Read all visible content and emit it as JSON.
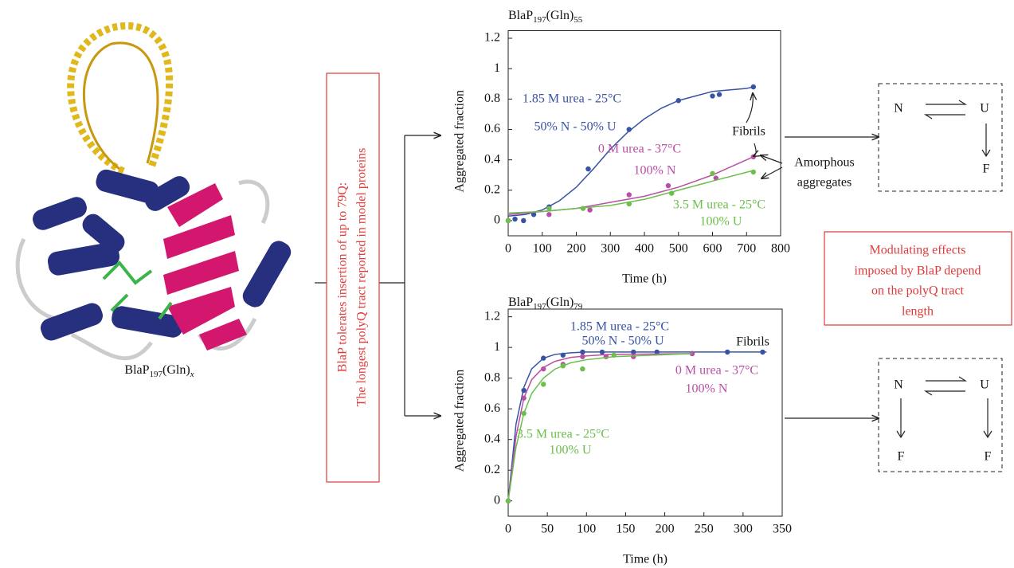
{
  "protein_label": [
    "BlaP",
    "197",
    "(Gln)",
    "x"
  ],
  "red_box_text": [
    "BlaP tolerates insertion of up to 79Q:",
    "The longest polyQ tract reported in model proteins"
  ],
  "modulating_text": [
    "Modulating effects",
    "imposed by BlaP depend",
    "on the polyQ tract",
    "length"
  ],
  "scheme_top": {
    "n": "N",
    "u": "U",
    "f": "F"
  },
  "scheme_bottom": {
    "n": "N",
    "u": "U",
    "f1": "F",
    "f2": "F"
  },
  "chart_data": [
    {
      "type": "scatter",
      "title": [
        "BlaP",
        "197",
        "(Gln)",
        "55"
      ],
      "xlabel": "Time (h)",
      "ylabel": "Aggregated fraction",
      "xlim": [
        0,
        800
      ],
      "xticks": [
        0,
        100,
        200,
        300,
        400,
        500,
        600,
        700,
        800
      ],
      "ylim": [
        -0.1,
        1.25
      ],
      "yticks": [
        0,
        0.2,
        0.4,
        0.6,
        0.8,
        1,
        1.2
      ],
      "annotations": [
        "Fibrils",
        "Amorphous",
        "aggregates"
      ],
      "series": [
        {
          "label": [
            "1.85 M urea - 25°C",
            "50% N - 50% U"
          ],
          "color": "#3953a4",
          "x": [
            0,
            20,
            45,
            75,
            120,
            235,
            355,
            500,
            600,
            620,
            720
          ],
          "values": [
            0,
            0.01,
            0,
            0.04,
            0.09,
            0.34,
            0.6,
            0.79,
            0.82,
            0.83,
            0.88
          ],
          "fit": {
            "x": [
              0,
              50,
              100,
              150,
              200,
              250,
              300,
              350,
              400,
              450,
              500,
              550,
              600,
              650,
              700,
              720
            ],
            "y": [
              0.03,
              0.04,
              0.07,
              0.13,
              0.22,
              0.34,
              0.47,
              0.58,
              0.67,
              0.74,
              0.79,
              0.82,
              0.85,
              0.86,
              0.87,
              0.88
            ]
          }
        },
        {
          "label": [
            "0 M urea - 37°C",
            "100% N"
          ],
          "color": "#b94fa5",
          "x": [
            0,
            120,
            240,
            355,
            470,
            610,
            720
          ],
          "values": [
            0,
            0.04,
            0.07,
            0.17,
            0.23,
            0.28,
            0.42
          ],
          "fit": {
            "x": [
              0,
              100,
              200,
              300,
              400,
              500,
              600,
              720
            ],
            "y": [
              0.04,
              0.06,
              0.08,
              0.12,
              0.16,
              0.22,
              0.3,
              0.42
            ]
          }
        },
        {
          "label": [
            "3.5 M urea - 25°C",
            "100% U"
          ],
          "color": "#6cbf4a",
          "x": [
            0,
            120,
            220,
            355,
            480,
            600,
            720
          ],
          "values": [
            0,
            0.08,
            0.08,
            0.11,
            0.18,
            0.31,
            0.32
          ],
          "fit": {
            "x": [
              0,
              100,
              200,
              300,
              400,
              500,
              600,
              720
            ],
            "y": [
              0.05,
              0.06,
              0.08,
              0.1,
              0.14,
              0.2,
              0.26,
              0.33
            ]
          }
        }
      ]
    },
    {
      "type": "scatter",
      "title": [
        "BlaP",
        "197",
        "(Gln)",
        "79"
      ],
      "xlabel": "Time (h)",
      "ylabel": "Aggregated fraction",
      "xlim": [
        0,
        350
      ],
      "xticks": [
        0,
        50,
        100,
        150,
        200,
        250,
        300,
        350
      ],
      "ylim": [
        -0.1,
        1.25
      ],
      "yticks": [
        0,
        0.2,
        0.4,
        0.6,
        0.8,
        1,
        1.2
      ],
      "annotations": [
        "Fibrils"
      ],
      "series": [
        {
          "label": [
            "1.85 M urea - 25°C",
            "50% N - 50% U"
          ],
          "color": "#3953a4",
          "x": [
            0,
            20,
            45,
            70,
            95,
            120,
            160,
            190,
            235,
            280,
            325
          ],
          "values": [
            0,
            0.72,
            0.93,
            0.95,
            0.97,
            0.97,
            0.97,
            0.97,
            0.96,
            0.97,
            0.97
          ],
          "fit": {
            "x": [
              0,
              10,
              20,
              30,
              45,
              60,
              80,
              100,
              330
            ],
            "y": [
              0,
              0.5,
              0.74,
              0.86,
              0.93,
              0.955,
              0.965,
              0.97,
              0.97
            ]
          }
        },
        {
          "label": [
            "0 M urea - 37°C",
            "100% N"
          ],
          "color": "#b94fa5",
          "x": [
            0,
            20,
            45,
            70,
            95,
            125,
            160,
            235
          ],
          "values": [
            0,
            0.67,
            0.86,
            0.89,
            0.94,
            0.94,
            0.94,
            0.96
          ],
          "fit": {
            "x": [
              0,
              10,
              20,
              30,
              45,
              60,
              80,
              100,
              130,
              235
            ],
            "y": [
              0,
              0.42,
              0.67,
              0.79,
              0.87,
              0.91,
              0.935,
              0.945,
              0.955,
              0.96
            ]
          }
        },
        {
          "label": [
            "3.5 M urea - 25°C",
            "100% U"
          ],
          "color": "#6cbf4a",
          "x": [
            0,
            20,
            45,
            70,
            95,
            135
          ],
          "values": [
            0,
            0.57,
            0.76,
            0.88,
            0.86,
            0.95
          ],
          "fit": {
            "x": [
              0,
              10,
              20,
              30,
              45,
              60,
              80,
              100,
              135,
              235
            ],
            "y": [
              0,
              0.35,
              0.57,
              0.7,
              0.8,
              0.86,
              0.9,
              0.92,
              0.94,
              0.96
            ]
          }
        }
      ]
    }
  ]
}
